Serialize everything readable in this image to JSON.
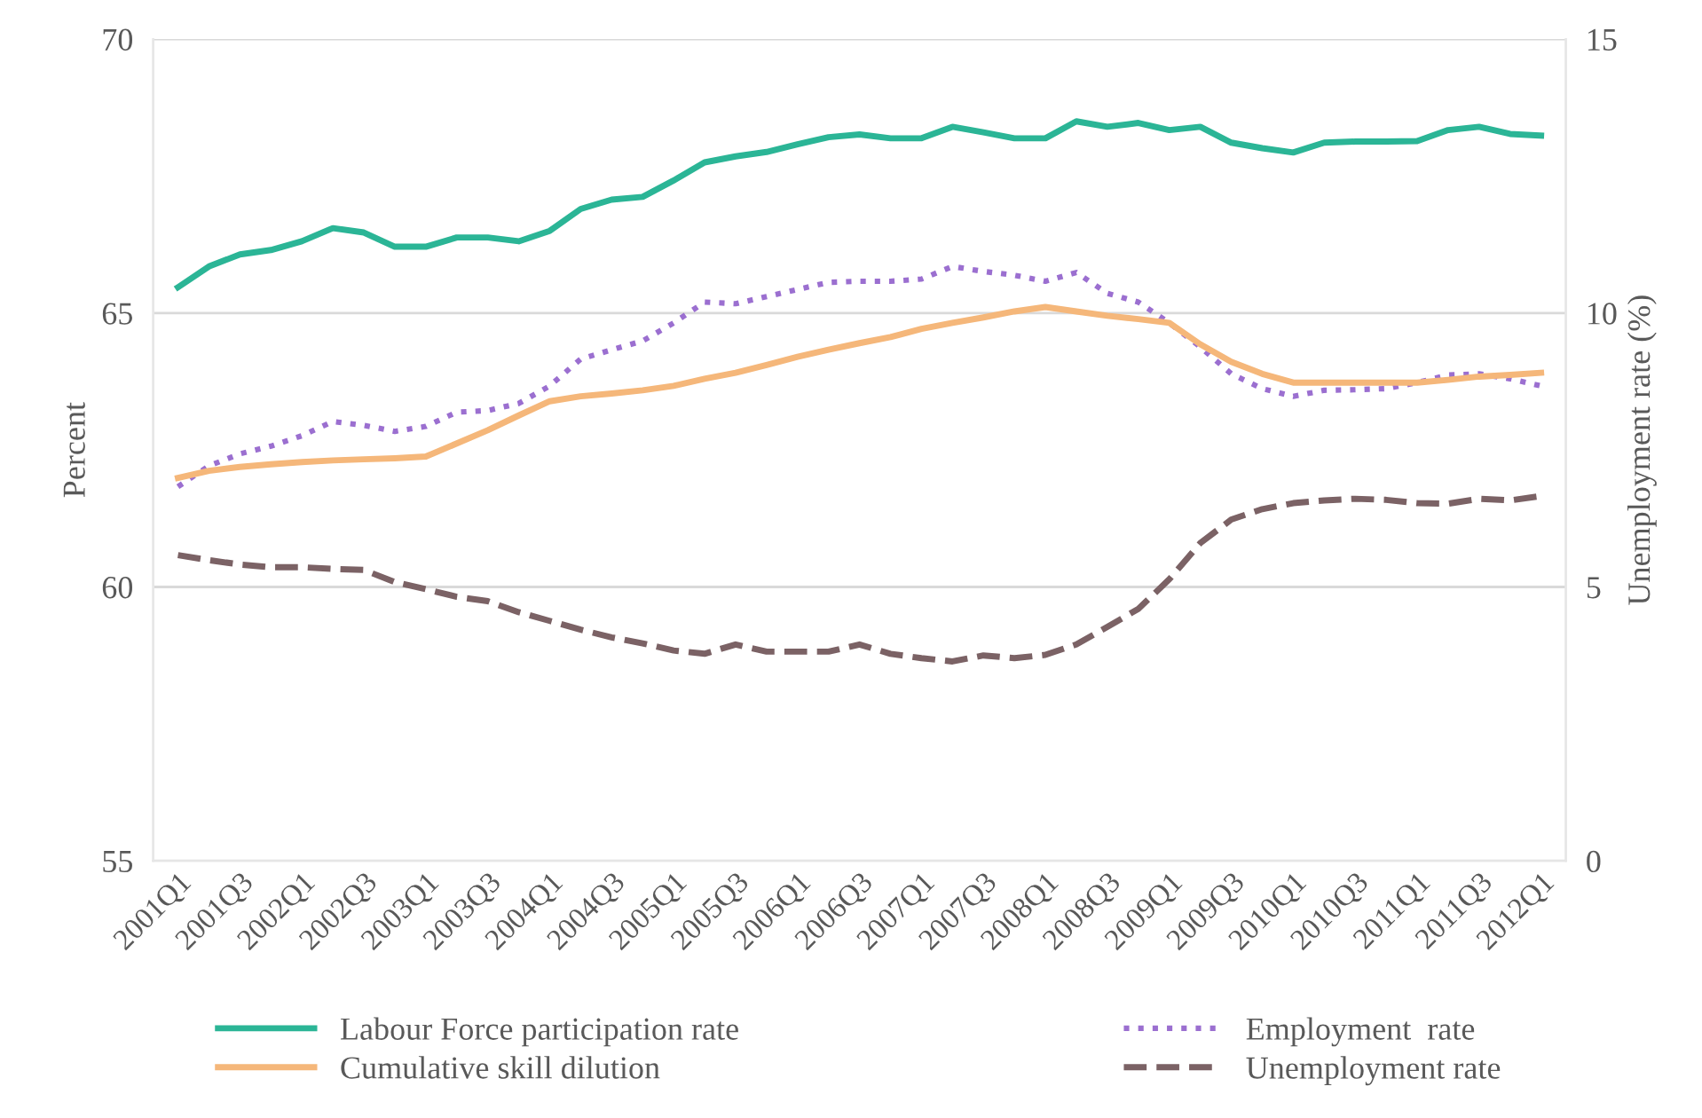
{
  "chart_data": {
    "type": "line",
    "ylabel": "Percent",
    "y2label": "Unemployment rate (%)",
    "categories": [
      "2001Q1",
      null,
      "2001Q3",
      null,
      "2002Q1",
      null,
      "2002Q3",
      null,
      "2003Q1",
      null,
      "2003Q3",
      null,
      "2004Q1",
      null,
      "2004Q3",
      null,
      "2005Q1",
      null,
      "2005Q3",
      null,
      "2006Q1",
      null,
      "2006Q3",
      null,
      "2007Q1",
      null,
      "2007Q3",
      null,
      "2008Q1",
      null,
      "2008Q3",
      null,
      "2009Q1",
      null,
      "2009Q3",
      null,
      "2010Q1",
      null,
      "2010Q3",
      null,
      "2011Q1",
      null,
      "2011Q3",
      null,
      "2012Q1"
    ],
    "series": [
      {
        "name": "Labour Force participation rate",
        "color": "#2bb596",
        "line_style": "solid",
        "values": [
          65.47,
          65.85,
          66.07,
          66.15,
          66.31,
          66.55,
          66.47,
          66.21,
          66.21,
          66.38,
          66.38,
          66.31,
          66.5,
          66.9,
          67.07,
          67.12,
          67.42,
          67.75,
          67.86,
          67.94,
          68.08,
          68.21,
          68.26,
          68.19,
          68.19,
          68.4,
          68.3,
          68.19,
          68.19,
          68.5,
          68.4,
          68.47,
          68.34,
          68.4,
          68.11,
          68.01,
          67.93,
          68.11,
          68.13,
          68.13,
          68.14,
          68.34,
          68.4,
          68.27,
          68.24
        ]
      },
      {
        "name": "Employment  rate",
        "color": "#9b6fd0",
        "line_style": "dotted",
        "values": [
          61.83,
          62.21,
          62.43,
          62.57,
          62.76,
          63.02,
          62.95,
          62.84,
          62.93,
          63.19,
          63.22,
          63.35,
          63.67,
          64.16,
          64.33,
          64.49,
          64.82,
          65.2,
          65.17,
          65.3,
          65.43,
          65.56,
          65.58,
          65.58,
          65.62,
          65.85,
          65.76,
          65.69,
          65.58,
          65.74,
          65.36,
          65.2,
          64.82,
          64.38,
          63.89,
          63.62,
          63.48,
          63.59,
          63.6,
          63.62,
          63.73,
          63.87,
          63.89,
          63.8,
          63.67
        ]
      },
      {
        "name": "Cumulative skill dilution",
        "color": "#f5b77a",
        "line_style": "solid",
        "values": [
          61.99,
          62.12,
          62.19,
          62.24,
          62.28,
          62.31,
          62.33,
          62.35,
          62.38,
          62.62,
          62.86,
          63.13,
          63.39,
          63.48,
          63.53,
          63.59,
          63.67,
          63.8,
          63.91,
          64.05,
          64.2,
          64.33,
          64.45,
          64.56,
          64.71,
          64.82,
          64.92,
          65.03,
          65.11,
          65.03,
          64.95,
          64.89,
          64.82,
          64.43,
          64.11,
          63.89,
          63.73,
          63.73,
          63.73,
          63.73,
          63.73,
          63.78,
          63.84,
          63.87,
          63.91
        ]
      },
      {
        "name": "Unemployment rate",
        "color": "#7b6265",
        "line_style": "dashed",
        "axis": "y2",
        "values": [
          5.58,
          5.49,
          5.41,
          5.36,
          5.36,
          5.33,
          5.31,
          5.09,
          4.96,
          4.82,
          4.74,
          4.54,
          4.38,
          4.22,
          4.08,
          3.97,
          3.84,
          3.78,
          3.95,
          3.82,
          3.82,
          3.82,
          3.95,
          3.78,
          3.7,
          3.64,
          3.75,
          3.7,
          3.76,
          3.95,
          4.27,
          4.6,
          5.14,
          5.8,
          6.23,
          6.42,
          6.53,
          6.58,
          6.61,
          6.59,
          6.53,
          6.52,
          6.61,
          6.58,
          6.66
        ]
      }
    ],
    "ylim": [
      55,
      70
    ],
    "yticks": [
      55,
      60,
      65,
      70
    ],
    "y2lim": [
      0,
      15
    ],
    "y2ticks": [
      0,
      5,
      10,
      15
    ],
    "grid": "y",
    "legend": "bottom",
    "marker": "none"
  }
}
